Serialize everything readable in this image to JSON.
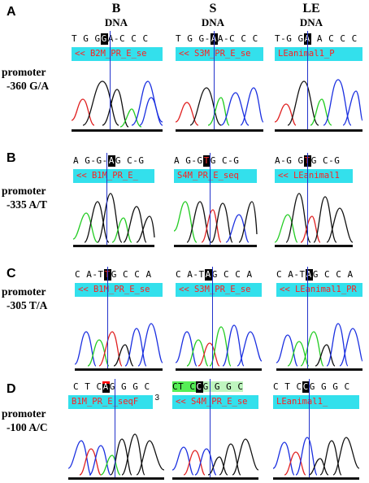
{
  "columns": [
    {
      "line1": "B",
      "line2": "DNA"
    },
    {
      "line1": "S",
      "line2": "DNA"
    },
    {
      "line1": "LE",
      "line2": "DNA"
    }
  ],
  "panels": [
    {
      "letter": "A",
      "label_line1": "promoter",
      "label_line2": "-360 G/A",
      "traces": [
        {
          "seq_before": "T G G",
          "seq_hl": "G",
          "seq_after": "A-C C C",
          "bar_text": "<< B2M_PR_E_se"
        },
        {
          "seq_before": "T G G-",
          "seq_hl": "A",
          "seq_after": "A-C C C",
          "bar_text": "<< S3M_PR_E_se"
        },
        {
          "seq_before": "T-G G",
          "seq_hl": "A",
          "seq_after": " A C C C",
          "bar_text": "LEanimal1_P"
        }
      ]
    },
    {
      "letter": "B",
      "label_line1": "promoter",
      "label_line2": "-335 A/T",
      "traces": [
        {
          "seq_before": "A G-G-",
          "seq_hl": "A",
          "seq_after": "G C-G",
          "bar_text": "<< B1M_PR_E_"
        },
        {
          "seq_before": "A G-G",
          "seq_hl": "T",
          "seq_after": "G C-G",
          "bar_text": "S4M_PR_E_seq"
        },
        {
          "seq_before": "A-G G",
          "seq_hl": "T",
          "seq_after": "G C-G",
          "bar_text": "<< LEanimal1"
        }
      ]
    },
    {
      "letter": "C",
      "label_line1": "promoter",
      "label_line2": "-305 T/A",
      "traces": [
        {
          "seq_before": "C A-T",
          "seq_hl": "T",
          "seq_after": "G C C A",
          "bar_text": "<< B1M_PR_E_se"
        },
        {
          "seq_before": "C A-T",
          "seq_hl": "A",
          "seq_after": "G C C A",
          "bar_text": "<< S3M_PR_E_se"
        },
        {
          "seq_before": "C A-T",
          "seq_hl": "A",
          "seq_after": "G C C A",
          "bar_text": "<< LEanimal1_PR"
        }
      ]
    },
    {
      "letter": "D",
      "label_line1": "promoter",
      "label_line2": "-100 A/C",
      "traces": [
        {
          "seq_before": "C T C",
          "seq_hl": "A",
          "seq_after": "G G G C",
          "bar_text": "B1M_PR_E_seqF",
          "superscript": "3"
        },
        {
          "seq_before": "CT C",
          "seq_hl": "C",
          "seq_after": "G G G C",
          "bar_text": "<< S4M_PR_E_se"
        },
        {
          "seq_before": "C T C",
          "seq_hl": "C",
          "seq_after": "G G G C",
          "bar_text": "LEanimal1_"
        }
      ]
    }
  ],
  "colors": {
    "A": "#22cc22",
    "C": "#1a2fe0",
    "G": "#111111",
    "T": "#e02020",
    "bar": "#33e0ec",
    "cursor": "#2233cc"
  }
}
